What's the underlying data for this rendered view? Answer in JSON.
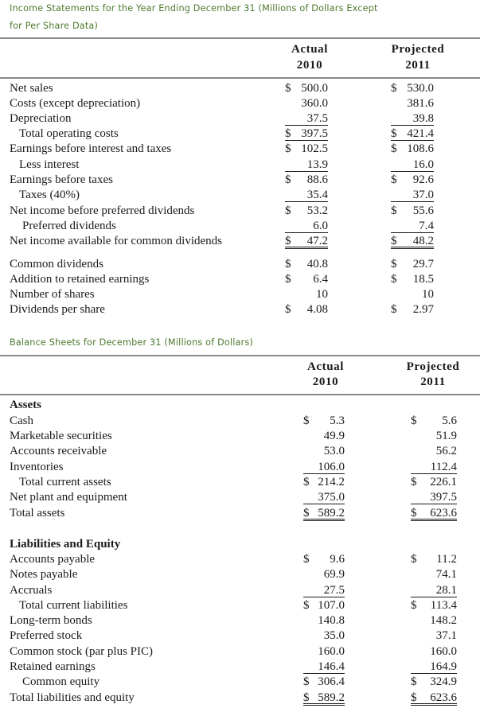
{
  "income": {
    "title_line1": "Income Statements for the Year Ending December 31 (Millions of Dollars Except",
    "title_line2": "for Per Share Data)",
    "col_actual": [
      "Actual",
      "2010"
    ],
    "col_projected": [
      "Projected",
      "2011"
    ],
    "rows": [
      {
        "label": "Net sales",
        "indent": 0,
        "actual": "500.0",
        "actual_cur": "$",
        "projected": "530.0",
        "projected_cur": "$",
        "rule": ""
      },
      {
        "label": "Costs (except depreciation)",
        "indent": 0,
        "actual": "360.0",
        "actual_cur": "",
        "projected": "381.6",
        "projected_cur": "",
        "rule": ""
      },
      {
        "label": "Depreciation",
        "indent": 0,
        "actual": "37.5",
        "actual_cur": "",
        "projected": "39.8",
        "projected_cur": "",
        "rule": "single"
      },
      {
        "label": "Total operating costs",
        "indent": 1,
        "actual": "397.5",
        "actual_cur": "$",
        "projected": "421.4",
        "projected_cur": "$",
        "rule": "single"
      },
      {
        "label": "Earnings before interest and taxes",
        "indent": 0,
        "actual": "102.5",
        "actual_cur": "$",
        "projected": "108.6",
        "projected_cur": "$",
        "rule": ""
      },
      {
        "label": "Less interest",
        "indent": 1,
        "actual": "13.9",
        "actual_cur": "",
        "projected": "16.0",
        "projected_cur": "",
        "rule": "single"
      },
      {
        "label": "Earnings before taxes",
        "indent": 0,
        "actual": "88.6",
        "actual_cur": "$",
        "projected": "92.6",
        "projected_cur": "$",
        "rule": ""
      },
      {
        "label": "Taxes (40%)",
        "indent": 1,
        "actual": "35.4",
        "actual_cur": "",
        "projected": "37.0",
        "projected_cur": "",
        "rule": "single"
      },
      {
        "label": "Net income before preferred dividends",
        "indent": 0,
        "actual": "53.2",
        "actual_cur": "$",
        "projected": "55.6",
        "projected_cur": "$",
        "rule": ""
      },
      {
        "label": "Preferred dividends",
        "indent": 2,
        "actual": "6.0",
        "actual_cur": "",
        "projected": "7.4",
        "projected_cur": "",
        "rule": "single"
      },
      {
        "label": "Net income available for common dividends",
        "indent": 0,
        "actual": "47.2",
        "actual_cur": "$",
        "projected": "48.2",
        "projected_cur": "$",
        "rule": "double"
      },
      {
        "label": "Common dividends",
        "indent": 0,
        "actual": "40.8",
        "actual_cur": "$",
        "projected": "29.7",
        "projected_cur": "$",
        "rule": ""
      },
      {
        "label": "Addition to retained earnings",
        "indent": 0,
        "actual": "6.4",
        "actual_cur": "$",
        "projected": "18.5",
        "projected_cur": "$",
        "rule": ""
      },
      {
        "label": "Number of shares",
        "indent": 0,
        "actual": "10",
        "actual_cur": "",
        "projected": "10",
        "projected_cur": "",
        "rule": ""
      },
      {
        "label": "Dividends per share",
        "indent": 0,
        "actual": "4.08",
        "actual_cur": "$",
        "projected": "2.97",
        "projected_cur": "$",
        "rule": ""
      }
    ]
  },
  "balance": {
    "title": "Balance Sheets for December 31 (Millions of Dollars)",
    "col_actual": [
      "Actual",
      "2010"
    ],
    "col_projected": [
      "Projected",
      "2011"
    ],
    "assets_heading": "Assets",
    "liabilities_heading": "Liabilities and Equity",
    "assets": [
      {
        "label": "Cash",
        "indent": 0,
        "actual": "5.3",
        "actual_cur": "$",
        "projected": "5.6",
        "projected_cur": "$",
        "rule": ""
      },
      {
        "label": "Marketable securities",
        "indent": 0,
        "actual": "49.9",
        "actual_cur": "",
        "projected": "51.9",
        "projected_cur": "",
        "rule": ""
      },
      {
        "label": "Accounts receivable",
        "indent": 0,
        "actual": "53.0",
        "actual_cur": "",
        "projected": "56.2",
        "projected_cur": "",
        "rule": ""
      },
      {
        "label": "Inventories",
        "indent": 0,
        "actual": "106.0",
        "actual_cur": "",
        "projected": "112.4",
        "projected_cur": "",
        "rule": "single"
      },
      {
        "label": "Total current assets",
        "indent": 1,
        "actual": "214.2",
        "actual_cur": "$",
        "projected": "226.1",
        "projected_cur": "$",
        "rule": ""
      },
      {
        "label": "Net plant and equipment",
        "indent": 0,
        "actual": "375.0",
        "actual_cur": "",
        "projected": "397.5",
        "projected_cur": "",
        "rule": "single"
      },
      {
        "label": "Total assets",
        "indent": 0,
        "actual": "589.2",
        "actual_cur": "$",
        "projected": "623.6",
        "projected_cur": "$",
        "rule": "double"
      }
    ],
    "liabilities": [
      {
        "label": "Accounts payable",
        "indent": 0,
        "actual": "9.6",
        "actual_cur": "$",
        "projected": "11.2",
        "projected_cur": "$",
        "rule": ""
      },
      {
        "label": "Notes payable",
        "indent": 0,
        "actual": "69.9",
        "actual_cur": "",
        "projected": "74.1",
        "projected_cur": "",
        "rule": ""
      },
      {
        "label": "Accruals",
        "indent": 0,
        "actual": "27.5",
        "actual_cur": "",
        "projected": "28.1",
        "projected_cur": "",
        "rule": "single"
      },
      {
        "label": "Total current liabilities",
        "indent": 1,
        "actual": "107.0",
        "actual_cur": "$",
        "projected": "113.4",
        "projected_cur": "$",
        "rule": ""
      },
      {
        "label": "Long-term bonds",
        "indent": 0,
        "actual": "140.8",
        "actual_cur": "",
        "projected": "148.2",
        "projected_cur": "",
        "rule": ""
      },
      {
        "label": "Preferred stock",
        "indent": 0,
        "actual": "35.0",
        "actual_cur": "",
        "projected": "37.1",
        "projected_cur": "",
        "rule": ""
      },
      {
        "label": "Common stock (par plus PIC)",
        "indent": 0,
        "actual": "160.0",
        "actual_cur": "",
        "projected": "160.0",
        "projected_cur": "",
        "rule": ""
      },
      {
        "label": "Retained earnings",
        "indent": 0,
        "actual": "146.4",
        "actual_cur": "",
        "projected": "164.9",
        "projected_cur": "",
        "rule": "single"
      },
      {
        "label": "Common equity",
        "indent": 2,
        "actual": "306.4",
        "actual_cur": "$",
        "projected": "324.9",
        "projected_cur": "$",
        "rule": ""
      },
      {
        "label": "Total liabilities and equity",
        "indent": 0,
        "actual": "589.2",
        "actual_cur": "$",
        "projected": "623.6",
        "projected_cur": "$",
        "rule": "double"
      }
    ]
  }
}
